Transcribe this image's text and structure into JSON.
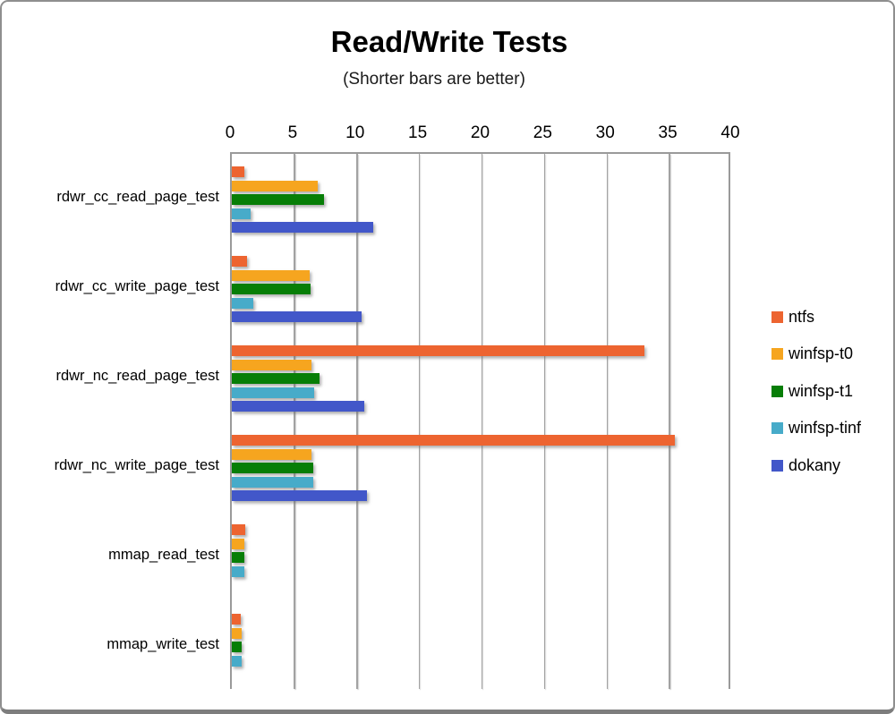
{
  "chart_data": {
    "type": "bar",
    "orientation": "horizontal",
    "title": "Read/Write Tests",
    "subtitle": "(Shorter bars are better)",
    "categories": [
      "rdwr_cc_read_page_test",
      "rdwr_cc_write_page_test",
      "rdwr_nc_read_page_test",
      "rdwr_nc_write_page_test",
      "mmap_read_test",
      "mmap_write_test"
    ],
    "series": [
      {
        "name": "ntfs",
        "color": "#ED6430",
        "values": [
          1.0,
          1.2,
          33.0,
          35.4,
          1.1,
          0.7
        ]
      },
      {
        "name": "winfsp-t0",
        "color": "#F6A51F",
        "values": [
          6.9,
          6.2,
          6.4,
          6.4,
          1.0,
          0.8
        ]
      },
      {
        "name": "winfsp-t1",
        "color": "#077E07",
        "values": [
          7.4,
          6.3,
          7.0,
          6.5,
          1.0,
          0.8
        ]
      },
      {
        "name": "winfsp-tinf",
        "color": "#47ABC9",
        "values": [
          1.5,
          1.7,
          6.6,
          6.5,
          1.0,
          0.8
        ]
      },
      {
        "name": "dokany",
        "color": "#4257C9",
        "values": [
          11.3,
          10.4,
          10.6,
          10.8,
          0,
          0
        ]
      }
    ],
    "xlim": [
      0,
      40
    ],
    "xticks": [
      0,
      5,
      10,
      15,
      20,
      25,
      30,
      35,
      40
    ],
    "grid": true,
    "legend_position": "right"
  },
  "colors": {
    "gridline": "#A2A2A2",
    "axis_border": "#9A9A9A",
    "frame_border": "#8F8F8F",
    "text": "#000000"
  }
}
